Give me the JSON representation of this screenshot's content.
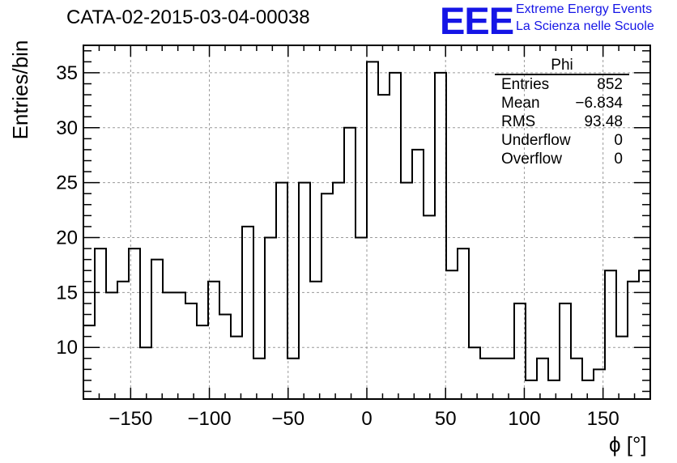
{
  "title": "CATA-02-2015-03-04-00038",
  "logo": {
    "text": "EEE",
    "line1": "Extreme Energy Events",
    "line2": "La Scienza nelle Scuole",
    "color": "#1515e6"
  },
  "stats": {
    "title": "Phi",
    "rows": [
      {
        "label": "Entries",
        "value": "852"
      },
      {
        "label": "Mean",
        "value": "−6.834"
      },
      {
        "label": "RMS",
        "value": "93.48"
      },
      {
        "label": "Underflow",
        "value": "0"
      },
      {
        "label": "Overflow",
        "value": "0"
      }
    ]
  },
  "chart_data": {
    "type": "bar",
    "style": "step histogram",
    "xlabel": "ϕ [°]",
    "ylabel": "Entries/bin",
    "xlim": [
      -180,
      180
    ],
    "ylim": [
      5.3,
      37.5
    ],
    "xticks": [
      -150,
      -100,
      -50,
      0,
      50,
      100,
      150
    ],
    "yticks": [
      10,
      15,
      20,
      25,
      30,
      35
    ],
    "grid": true,
    "bin_edges_start": -180,
    "bin_width": 7.2,
    "values": [
      12,
      19,
      15,
      16,
      19,
      10,
      18,
      15,
      15,
      14,
      12,
      16,
      13,
      11,
      21,
      9,
      20,
      25,
      9,
      25,
      16,
      24,
      25,
      30,
      20,
      36,
      33,
      35,
      25,
      28,
      22,
      35,
      17,
      19,
      10,
      9,
      9,
      9,
      14,
      7,
      9,
      7,
      14,
      9,
      7,
      8,
      17,
      11,
      16,
      17
    ]
  }
}
